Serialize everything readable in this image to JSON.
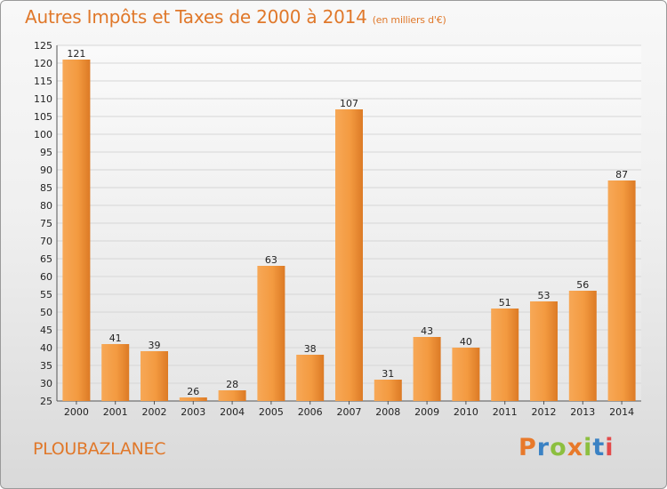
{
  "header": {
    "title": "Autres Impôts et Taxes de 2000 à 2014",
    "subtitle": "(en milliers d'€)"
  },
  "footer": {
    "commune": "PLOUBAZLANEC",
    "logo": "Proxiti"
  },
  "colors": {
    "accent": "#e0782a",
    "bar_light": "#f6a24a",
    "bar_dark": "#d3701c",
    "grid": "#d6d6d6",
    "logo_letters": [
      "#e8792a",
      "#3b82c4",
      "#8cbf3f",
      "#e8792a",
      "#8cbf3f",
      "#3b82c4",
      "#e34a4a"
    ]
  },
  "chart_data": {
    "type": "bar",
    "title": "Autres Impôts et Taxes de 2000 à 2014",
    "subtitle": "(en milliers d'€)",
    "categories": [
      "2000",
      "2001",
      "2002",
      "2003",
      "2004",
      "2005",
      "2006",
      "2007",
      "2008",
      "2009",
      "2010",
      "2011",
      "2012",
      "2013",
      "2014"
    ],
    "values": [
      121,
      41,
      39,
      26,
      28,
      63,
      38,
      107,
      31,
      43,
      40,
      51,
      53,
      56,
      87
    ],
    "ylim": [
      25,
      125
    ],
    "yticks": [
      25,
      30,
      35,
      40,
      45,
      50,
      55,
      60,
      65,
      70,
      75,
      80,
      85,
      90,
      95,
      100,
      105,
      110,
      115,
      120,
      125
    ],
    "grid": true,
    "xlabel": "",
    "ylabel": ""
  }
}
